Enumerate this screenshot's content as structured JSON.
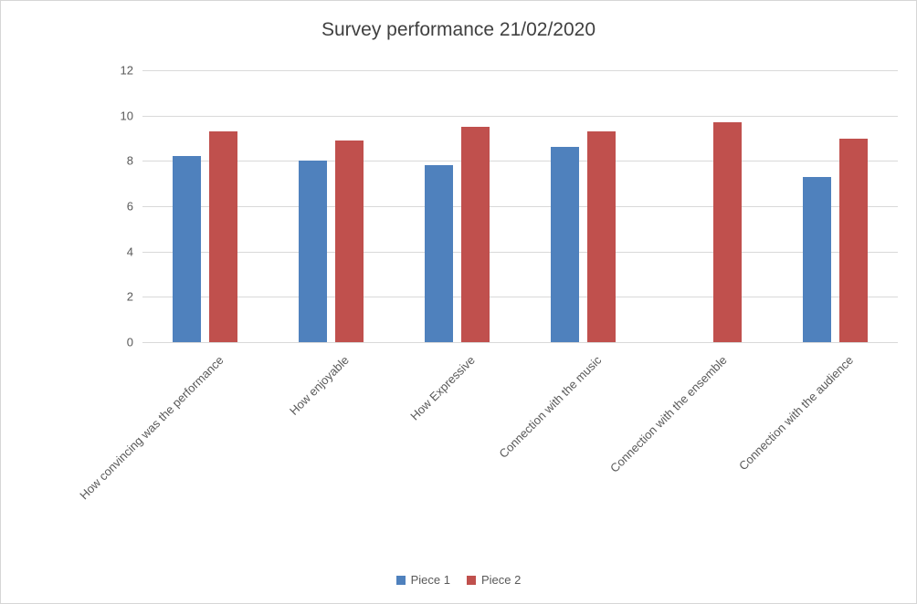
{
  "chart_data": {
    "type": "bar",
    "title": "Survey performance 21/02/2020",
    "categories": [
      "How convincing was the performance",
      "How enjoyable",
      "How Expressive",
      "Connection with the music",
      "Connection with the ensemble",
      "Connection with the audience"
    ],
    "series": [
      {
        "name": "Piece 1",
        "color": "#4F81BD",
        "values": [
          8.2,
          8.0,
          7.8,
          8.6,
          null,
          7.3
        ]
      },
      {
        "name": "Piece 2",
        "color": "#C0504D",
        "values": [
          9.3,
          8.9,
          9.5,
          9.3,
          9.7,
          9.0
        ]
      }
    ],
    "xlabel": "",
    "ylabel": "",
    "ylim": [
      0,
      12
    ],
    "yticks": [
      0,
      2,
      4,
      6,
      8,
      10,
      12
    ],
    "grid": true,
    "legend_position": "bottom",
    "gridline_color": "#D9D9D9",
    "axis_text_color": "#595959",
    "title_color": "#404040"
  }
}
